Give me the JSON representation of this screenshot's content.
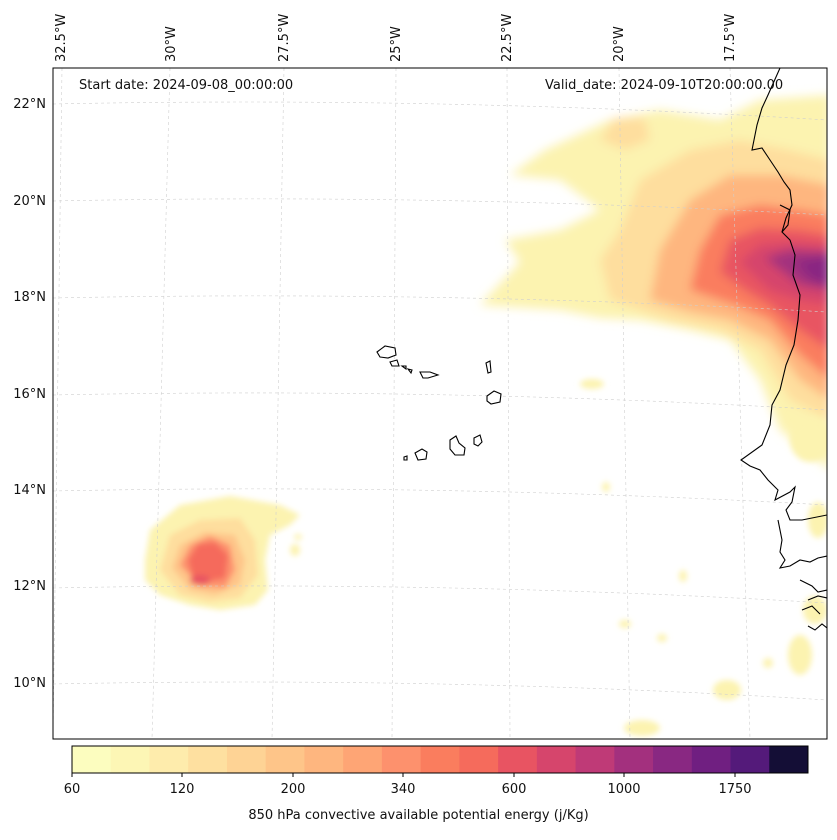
{
  "map": {
    "start_date": "Start date: 2024-09-08_00:00:00",
    "valid_date": "Valid_date: 2024-09-10T20:00:00.00",
    "lon_labels": [
      "32.5°W",
      "30°W",
      "27.5°W",
      "25°W",
      "22.5°W",
      "20°W",
      "17.5°W"
    ],
    "lat_labels": [
      "22°N",
      "20°N",
      "18°N",
      "16°N",
      "14°N",
      "12°N",
      "10°N"
    ],
    "coastline_color": "#000000"
  },
  "colorbar": {
    "title": "850 hPa convective available potential energy (j/Kg)",
    "tick_labels": [
      "60",
      "120",
      "200",
      "340",
      "600",
      "1000",
      "1750"
    ],
    "colors": [
      "#fcfdbf",
      "#fdf6b5",
      "#feecac",
      "#fee0a0",
      "#fed395",
      "#fec589",
      "#feb67f",
      "#fea575",
      "#fd916d",
      "#fa7d5e",
      "#f56b5c",
      "#e85462",
      "#d6456c",
      "#bf3a77",
      "#a3307e",
      "#892882",
      "#701f81",
      "#541a7a"
    ],
    "top_color": "#140e36"
  }
}
